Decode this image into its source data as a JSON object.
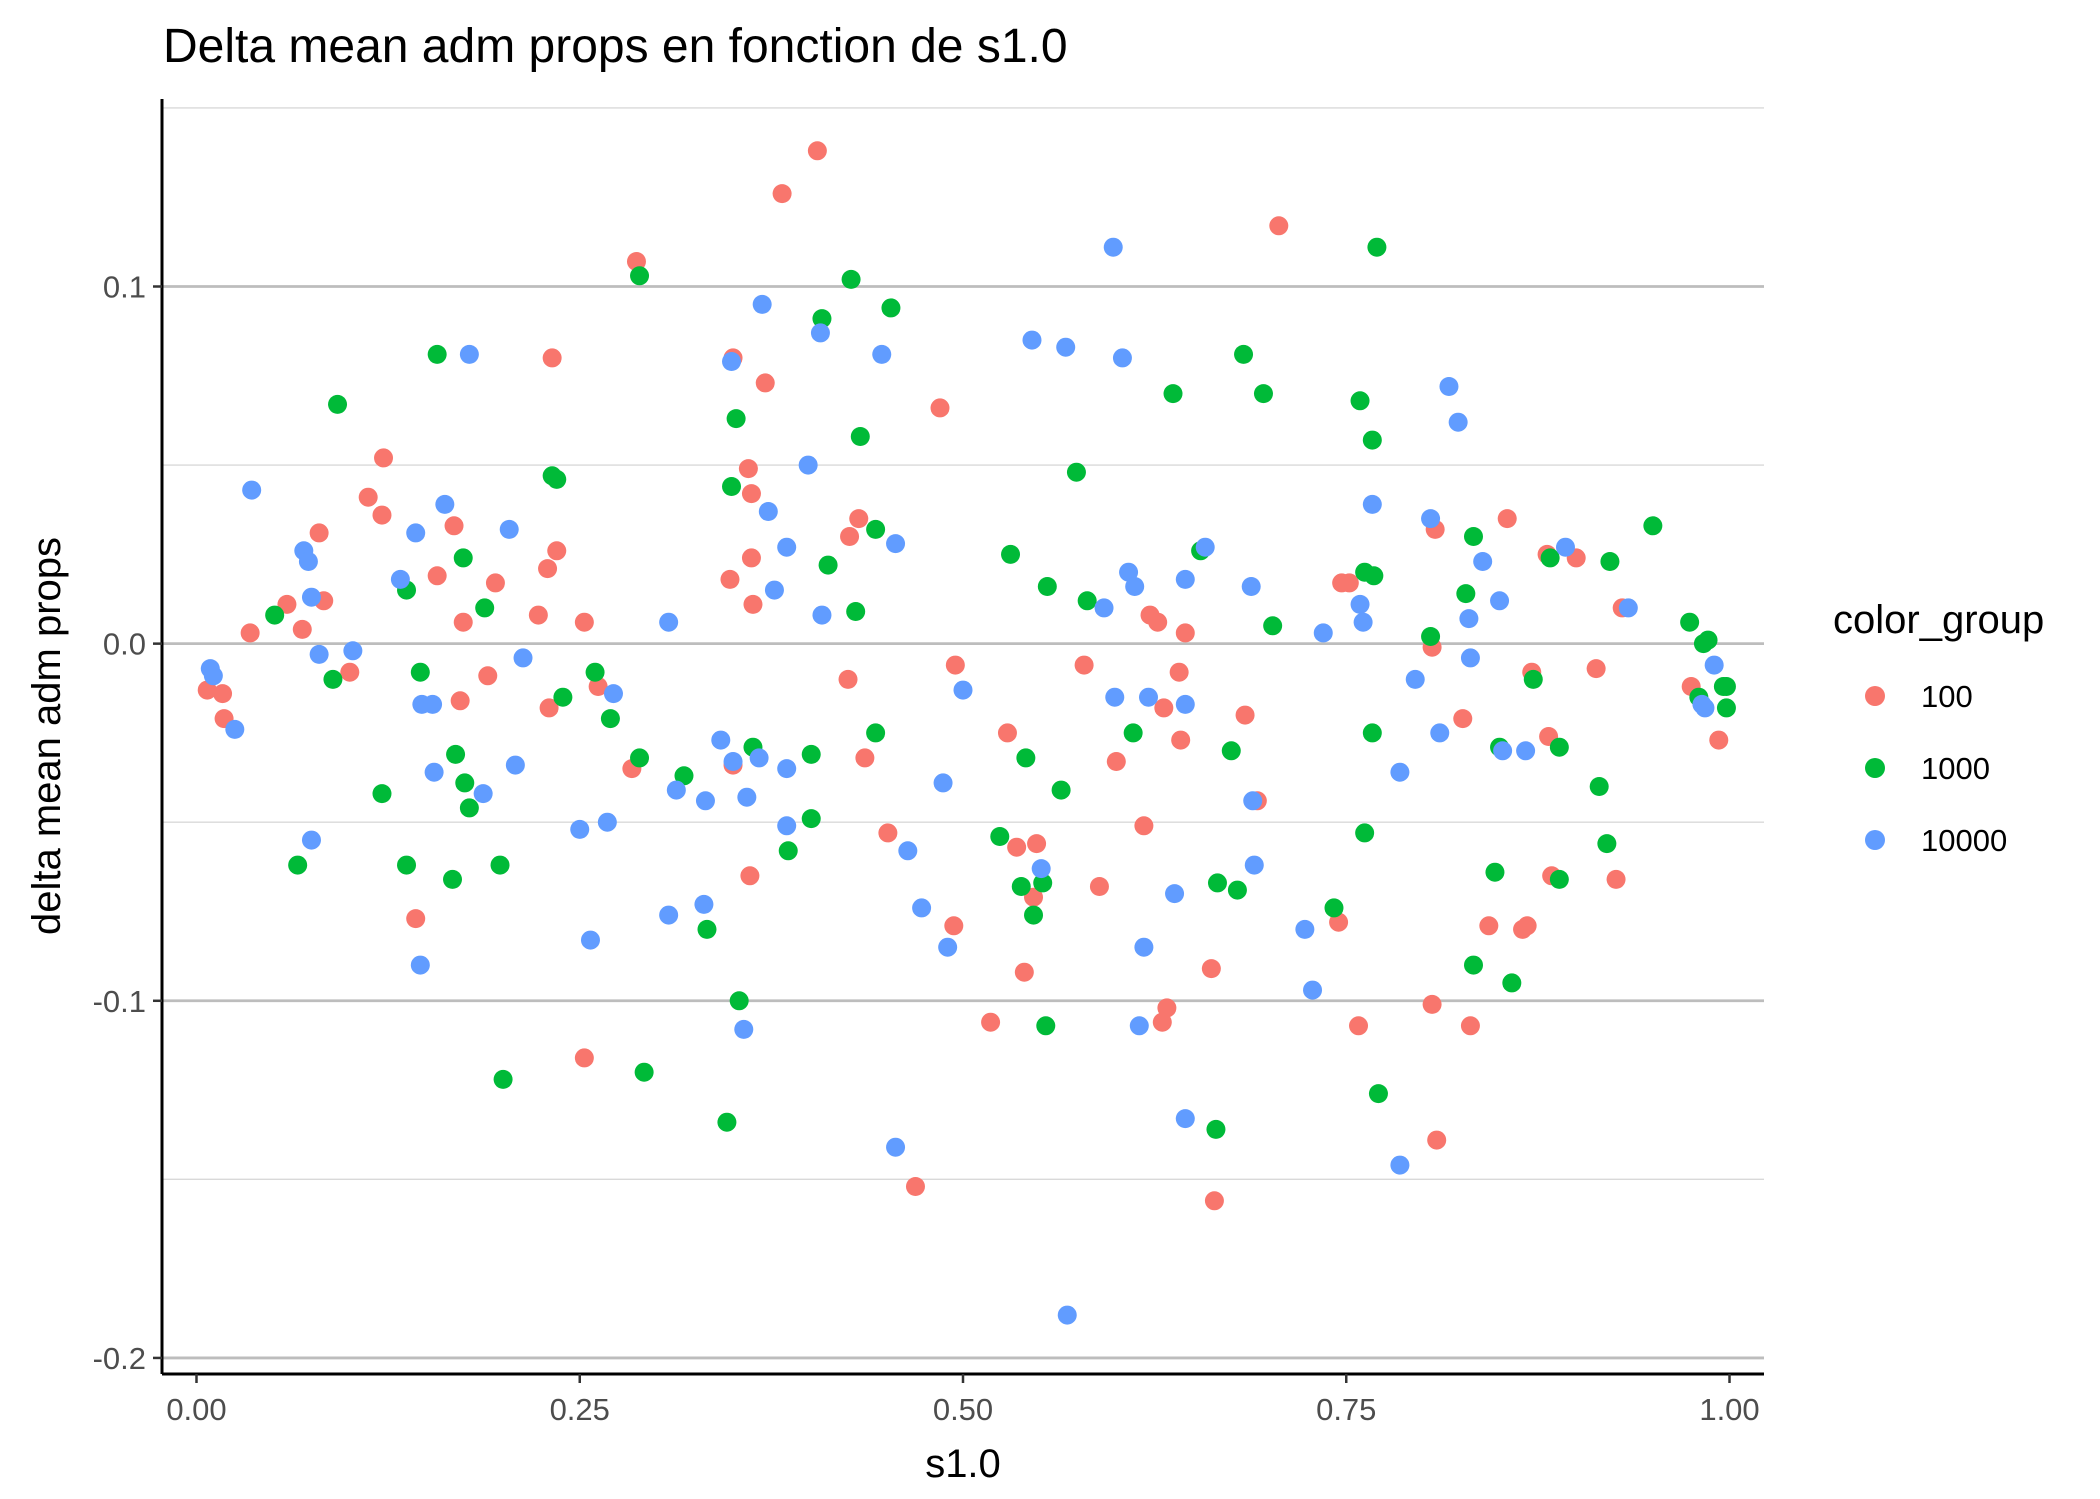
{
  "chart_data": {
    "type": "scatter",
    "title": "Delta mean adm props en fonction de s1.0",
    "xlabel": "s1.0",
    "ylabel": "delta mean adm props",
    "xlim": [
      -0.0225,
      1.0225
    ],
    "ylim": [
      -0.2045,
      0.1525
    ],
    "x_ticks": [
      0.0,
      0.25,
      0.5,
      0.75,
      1.0
    ],
    "x_tick_labels": [
      "0.00",
      "0.25",
      "0.50",
      "0.75",
      "1.00"
    ],
    "y_ticks": [
      0.1,
      0.0,
      -0.1,
      -0.2
    ],
    "y_tick_labels": [
      "0.1",
      "0.0",
      "-0.1",
      "-0.2"
    ],
    "y_minor_gridlines": [
      0.15,
      0.05,
      -0.05,
      -0.15
    ],
    "grid": "horizontal",
    "legend": {
      "title": "color_group",
      "position": "right"
    },
    "series": [
      {
        "name": "100",
        "color": "#F8766D",
        "points": [
          [
            0.405,
            0.138
          ],
          [
            0.382,
            0.126
          ],
          [
            0.706,
            0.117
          ],
          [
            0.287,
            0.107
          ],
          [
            0.35,
            0.08
          ],
          [
            0.232,
            0.08
          ],
          [
            0.371,
            0.073
          ],
          [
            0.485,
            0.066
          ],
          [
            0.122,
            0.052
          ],
          [
            0.36,
            0.049
          ],
          [
            0.112,
            0.041
          ],
          [
            0.362,
            0.042
          ],
          [
            0.121,
            0.036
          ],
          [
            0.432,
            0.035
          ],
          [
            0.855,
            0.035
          ],
          [
            0.808,
            0.032
          ],
          [
            0.168,
            0.033
          ],
          [
            0.08,
            0.031
          ],
          [
            0.426,
            0.03
          ],
          [
            0.235,
            0.026
          ],
          [
            0.881,
            0.025
          ],
          [
            0.9,
            0.024
          ],
          [
            0.362,
            0.024
          ],
          [
            0.229,
            0.021
          ],
          [
            0.157,
            0.019
          ],
          [
            0.195,
            0.017
          ],
          [
            0.348,
            0.018
          ],
          [
            0.747,
            0.017
          ],
          [
            0.752,
            0.017
          ],
          [
            0.363,
            0.011
          ],
          [
            0.083,
            0.012
          ],
          [
            0.059,
            0.011
          ],
          [
            0.93,
            0.01
          ],
          [
            0.223,
            0.008
          ],
          [
            0.622,
            0.008
          ],
          [
            0.627,
            0.006
          ],
          [
            0.253,
            0.006
          ],
          [
            0.174,
            0.006
          ],
          [
            0.069,
            0.004
          ],
          [
            0.645,
            0.003
          ],
          [
            0.035,
            0.003
          ],
          [
            0.806,
            -0.001
          ],
          [
            0.495,
            -0.006
          ],
          [
            0.579,
            -0.006
          ],
          [
            0.641,
            -0.008
          ],
          [
            0.871,
            -0.008
          ],
          [
            0.913,
            -0.007
          ],
          [
            0.1,
            -0.008
          ],
          [
            0.19,
            -0.009
          ],
          [
            0.425,
            -0.01
          ],
          [
            0.262,
            -0.012
          ],
          [
            0.975,
            -0.012
          ],
          [
            0.007,
            -0.013
          ],
          [
            0.017,
            -0.014
          ],
          [
            0.172,
            -0.016
          ],
          [
            0.631,
            -0.018
          ],
          [
            0.23,
            -0.018
          ],
          [
            0.684,
            -0.02
          ],
          [
            0.018,
            -0.021
          ],
          [
            0.826,
            -0.021
          ],
          [
            0.529,
            -0.025
          ],
          [
            0.882,
            -0.026
          ],
          [
            0.642,
            -0.027
          ],
          [
            0.993,
            -0.027
          ],
          [
            0.6,
            -0.033
          ],
          [
            0.35,
            -0.034
          ],
          [
            0.436,
            -0.032
          ],
          [
            0.284,
            -0.035
          ],
          [
            0.692,
            -0.044
          ],
          [
            0.618,
            -0.051
          ],
          [
            0.451,
            -0.053
          ],
          [
            0.535,
            -0.057
          ],
          [
            0.548,
            -0.056
          ],
          [
            0.361,
            -0.065
          ],
          [
            0.884,
            -0.065
          ],
          [
            0.926,
            -0.066
          ],
          [
            0.589,
            -0.068
          ],
          [
            0.546,
            -0.071
          ],
          [
            0.143,
            -0.077
          ],
          [
            0.745,
            -0.078
          ],
          [
            0.494,
            -0.079
          ],
          [
            0.843,
            -0.079
          ],
          [
            0.865,
            -0.08
          ],
          [
            0.868,
            -0.079
          ],
          [
            0.662,
            -0.091
          ],
          [
            0.54,
            -0.092
          ],
          [
            0.633,
            -0.102
          ],
          [
            0.806,
            -0.101
          ],
          [
            0.518,
            -0.106
          ],
          [
            0.63,
            -0.106
          ],
          [
            0.758,
            -0.107
          ],
          [
            0.831,
            -0.107
          ],
          [
            0.253,
            -0.116
          ],
          [
            0.809,
            -0.139
          ],
          [
            0.469,
            -0.152
          ],
          [
            0.664,
            -0.156
          ]
        ]
      },
      {
        "name": "1000",
        "color": "#00BA38",
        "points": [
          [
            0.77,
            0.111
          ],
          [
            0.289,
            0.103
          ],
          [
            0.427,
            0.102
          ],
          [
            0.453,
            0.094
          ],
          [
            0.408,
            0.091
          ],
          [
            0.157,
            0.081
          ],
          [
            0.683,
            0.081
          ],
          [
            0.637,
            0.07
          ],
          [
            0.696,
            0.07
          ],
          [
            0.759,
            0.068
          ],
          [
            0.092,
            0.067
          ],
          [
            0.352,
            0.063
          ],
          [
            0.433,
            0.058
          ],
          [
            0.767,
            0.057
          ],
          [
            0.574,
            0.048
          ],
          [
            0.232,
            0.047
          ],
          [
            0.235,
            0.046
          ],
          [
            0.349,
            0.044
          ],
          [
            0.95,
            0.033
          ],
          [
            0.443,
            0.032
          ],
          [
            0.833,
            0.03
          ],
          [
            0.655,
            0.026
          ],
          [
            0.531,
            0.025
          ],
          [
            0.883,
            0.024
          ],
          [
            0.922,
            0.023
          ],
          [
            0.174,
            0.024
          ],
          [
            0.412,
            0.022
          ],
          [
            0.762,
            0.02
          ],
          [
            0.768,
            0.019
          ],
          [
            0.555,
            0.016
          ],
          [
            0.137,
            0.015
          ],
          [
            0.828,
            0.014
          ],
          [
            0.581,
            0.012
          ],
          [
            0.188,
            0.01
          ],
          [
            0.43,
            0.009
          ],
          [
            0.051,
            0.008
          ],
          [
            0.974,
            0.006
          ],
          [
            0.702,
            0.005
          ],
          [
            0.805,
            0.002
          ],
          [
            0.986,
            0.001
          ],
          [
            0.983,
            0.0
          ],
          [
            0.26,
            -0.008
          ],
          [
            0.146,
            -0.008
          ],
          [
            0.872,
            -0.01
          ],
          [
            0.089,
            -0.01
          ],
          [
            0.996,
            -0.012
          ],
          [
            0.998,
            -0.012
          ],
          [
            0.98,
            -0.015
          ],
          [
            0.239,
            -0.015
          ],
          [
            0.998,
            -0.018
          ],
          [
            0.27,
            -0.021
          ],
          [
            0.611,
            -0.025
          ],
          [
            0.767,
            -0.025
          ],
          [
            0.443,
            -0.025
          ],
          [
            0.363,
            -0.029
          ],
          [
            0.85,
            -0.029
          ],
          [
            0.889,
            -0.029
          ],
          [
            0.675,
            -0.03
          ],
          [
            0.401,
            -0.031
          ],
          [
            0.169,
            -0.031
          ],
          [
            0.289,
            -0.032
          ],
          [
            0.541,
            -0.032
          ],
          [
            0.318,
            -0.037
          ],
          [
            0.175,
            -0.039
          ],
          [
            0.915,
            -0.04
          ],
          [
            0.564,
            -0.041
          ],
          [
            0.121,
            -0.042
          ],
          [
            0.178,
            -0.046
          ],
          [
            0.401,
            -0.049
          ],
          [
            0.762,
            -0.053
          ],
          [
            0.524,
            -0.054
          ],
          [
            0.92,
            -0.056
          ],
          [
            0.386,
            -0.058
          ],
          [
            0.066,
            -0.062
          ],
          [
            0.198,
            -0.062
          ],
          [
            0.137,
            -0.062
          ],
          [
            0.847,
            -0.064
          ],
          [
            0.167,
            -0.066
          ],
          [
            0.889,
            -0.066
          ],
          [
            0.552,
            -0.067
          ],
          [
            0.666,
            -0.067
          ],
          [
            0.538,
            -0.068
          ],
          [
            0.679,
            -0.069
          ],
          [
            0.742,
            -0.074
          ],
          [
            0.546,
            -0.076
          ],
          [
            0.333,
            -0.08
          ],
          [
            0.833,
            -0.09
          ],
          [
            0.858,
            -0.095
          ],
          [
            0.354,
            -0.1
          ],
          [
            0.554,
            -0.107
          ],
          [
            0.292,
            -0.12
          ],
          [
            0.2,
            -0.122
          ],
          [
            0.771,
            -0.126
          ],
          [
            0.346,
            -0.134
          ],
          [
            0.665,
            -0.136
          ]
        ]
      },
      {
        "name": "10000",
        "color": "#619CFF",
        "points": [
          [
            0.598,
            0.111
          ],
          [
            0.369,
            0.095
          ],
          [
            0.407,
            0.087
          ],
          [
            0.545,
            0.085
          ],
          [
            0.567,
            0.083
          ],
          [
            0.604,
            0.08
          ],
          [
            0.447,
            0.081
          ],
          [
            0.178,
            0.081
          ],
          [
            0.349,
            0.079
          ],
          [
            0.817,
            0.072
          ],
          [
            0.823,
            0.062
          ],
          [
            0.399,
            0.05
          ],
          [
            0.036,
            0.043
          ],
          [
            0.767,
            0.039
          ],
          [
            0.162,
            0.039
          ],
          [
            0.805,
            0.035
          ],
          [
            0.373,
            0.037
          ],
          [
            0.204,
            0.032
          ],
          [
            0.143,
            0.031
          ],
          [
            0.456,
            0.028
          ],
          [
            0.385,
            0.027
          ],
          [
            0.658,
            0.027
          ],
          [
            0.893,
            0.027
          ],
          [
            0.07,
            0.026
          ],
          [
            0.073,
            0.023
          ],
          [
            0.839,
            0.023
          ],
          [
            0.608,
            0.02
          ],
          [
            0.133,
            0.018
          ],
          [
            0.645,
            0.018
          ],
          [
            0.612,
            0.016
          ],
          [
            0.377,
            0.015
          ],
          [
            0.688,
            0.016
          ],
          [
            0.075,
            0.013
          ],
          [
            0.85,
            0.012
          ],
          [
            0.759,
            0.011
          ],
          [
            0.592,
            0.01
          ],
          [
            0.934,
            0.01
          ],
          [
            0.83,
            0.007
          ],
          [
            0.761,
            0.006
          ],
          [
            0.408,
            0.008
          ],
          [
            0.308,
            0.006
          ],
          [
            0.735,
            0.003
          ],
          [
            0.102,
            -0.002
          ],
          [
            0.08,
            -0.003
          ],
          [
            0.213,
            -0.004
          ],
          [
            0.831,
            -0.004
          ],
          [
            0.99,
            -0.006
          ],
          [
            0.009,
            -0.007
          ],
          [
            0.011,
            -0.009
          ],
          [
            0.795,
            -0.01
          ],
          [
            0.5,
            -0.013
          ],
          [
            0.272,
            -0.014
          ],
          [
            0.599,
            -0.015
          ],
          [
            0.621,
            -0.015
          ],
          [
            0.147,
            -0.017
          ],
          [
            0.154,
            -0.017
          ],
          [
            0.645,
            -0.017
          ],
          [
            0.982,
            -0.017
          ],
          [
            0.984,
            -0.018
          ],
          [
            0.025,
            -0.024
          ],
          [
            0.811,
            -0.025
          ],
          [
            0.342,
            -0.027
          ],
          [
            0.852,
            -0.03
          ],
          [
            0.867,
            -0.03
          ],
          [
            0.367,
            -0.032
          ],
          [
            0.35,
            -0.033
          ],
          [
            0.208,
            -0.034
          ],
          [
            0.385,
            -0.035
          ],
          [
            0.785,
            -0.036
          ],
          [
            0.155,
            -0.036
          ],
          [
            0.487,
            -0.039
          ],
          [
            0.313,
            -0.041
          ],
          [
            0.187,
            -0.042
          ],
          [
            0.332,
            -0.044
          ],
          [
            0.359,
            -0.043
          ],
          [
            0.689,
            -0.044
          ],
          [
            0.268,
            -0.05
          ],
          [
            0.385,
            -0.051
          ],
          [
            0.25,
            -0.052
          ],
          [
            0.075,
            -0.055
          ],
          [
            0.464,
            -0.058
          ],
          [
            0.69,
            -0.062
          ],
          [
            0.551,
            -0.063
          ],
          [
            0.638,
            -0.07
          ],
          [
            0.331,
            -0.073
          ],
          [
            0.473,
            -0.074
          ],
          [
            0.308,
            -0.076
          ],
          [
            0.723,
            -0.08
          ],
          [
            0.257,
            -0.083
          ],
          [
            0.49,
            -0.085
          ],
          [
            0.618,
            -0.085
          ],
          [
            0.146,
            -0.09
          ],
          [
            0.728,
            -0.097
          ],
          [
            0.615,
            -0.107
          ],
          [
            0.357,
            -0.108
          ],
          [
            0.645,
            -0.133
          ],
          [
            0.456,
            -0.141
          ],
          [
            0.785,
            -0.146
          ],
          [
            0.568,
            -0.188
          ]
        ]
      }
    ]
  }
}
